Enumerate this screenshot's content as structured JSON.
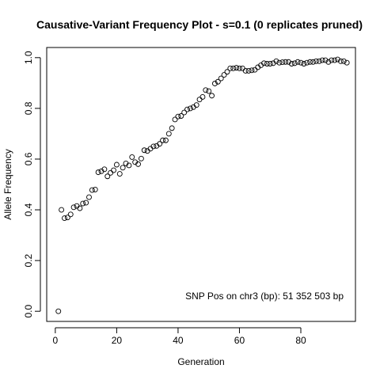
{
  "chart_data": {
    "type": "scatter",
    "title": "Causative-Variant Frequency Plot - s=0.1 (0 replicates pruned)",
    "xlabel": "Generation",
    "ylabel": "Allele Frequency",
    "xlim": [
      -2.8,
      97.8
    ],
    "ylim": [
      -0.04,
      1.04
    ],
    "xticks": [
      0,
      20,
      40,
      60,
      80
    ],
    "yticks": [
      0.0,
      0.2,
      0.4,
      0.6,
      0.8,
      1.0
    ],
    "xtick_labels": [
      "0",
      "20",
      "40",
      "60",
      "80"
    ],
    "ytick_labels": [
      "0.0",
      "0.2",
      "0.4",
      "0.6",
      "0.8",
      "1.0"
    ],
    "annotation": "SNP Pos on chr3 (bp): 51 352 503 bp",
    "marker": "open-circle",
    "grid": false,
    "series": [
      {
        "x": [
          1,
          2,
          3,
          4,
          5,
          6,
          7,
          8,
          9,
          10,
          11,
          12,
          13,
          14,
          15,
          16,
          17,
          18,
          19,
          20,
          21,
          22,
          23,
          24,
          25,
          26,
          27,
          28,
          29,
          30,
          31,
          32,
          33,
          34,
          35,
          36,
          37,
          38,
          39,
          40,
          41,
          42,
          43,
          44,
          45,
          46,
          47,
          48,
          49,
          50,
          51,
          52,
          53,
          54,
          55,
          56,
          57,
          58,
          59,
          60,
          61,
          62,
          63,
          64,
          65,
          66,
          67,
          68,
          69,
          70,
          71,
          72,
          73,
          74,
          75,
          76,
          77,
          78,
          79,
          80,
          81,
          82,
          83,
          84,
          85,
          86,
          87,
          88,
          89,
          90,
          91,
          92,
          93,
          94,
          95
        ],
        "y": [
          0.0,
          0.4,
          0.367,
          0.37,
          0.382,
          0.41,
          0.415,
          0.406,
          0.425,
          0.428,
          0.45,
          0.478,
          0.48,
          0.548,
          0.552,
          0.56,
          0.532,
          0.546,
          0.556,
          0.578,
          0.542,
          0.566,
          0.583,
          0.575,
          0.608,
          0.588,
          0.58,
          0.602,
          0.635,
          0.632,
          0.641,
          0.65,
          0.652,
          0.66,
          0.674,
          0.674,
          0.7,
          0.722,
          0.756,
          0.768,
          0.77,
          0.784,
          0.796,
          0.8,
          0.805,
          0.813,
          0.835,
          0.845,
          0.872,
          0.868,
          0.85,
          0.898,
          0.905,
          0.918,
          0.932,
          0.944,
          0.958,
          0.958,
          0.96,
          0.958,
          0.958,
          0.948,
          0.948,
          0.95,
          0.952,
          0.962,
          0.97,
          0.978,
          0.976,
          0.976,
          0.978,
          0.986,
          0.98,
          0.982,
          0.983,
          0.983,
          0.976,
          0.978,
          0.983,
          0.98,
          0.976,
          0.98,
          0.983,
          0.983,
          0.986,
          0.986,
          0.99,
          0.99,
          0.983,
          0.99,
          0.99,
          0.993,
          0.986,
          0.986,
          0.98
        ]
      }
    ]
  }
}
